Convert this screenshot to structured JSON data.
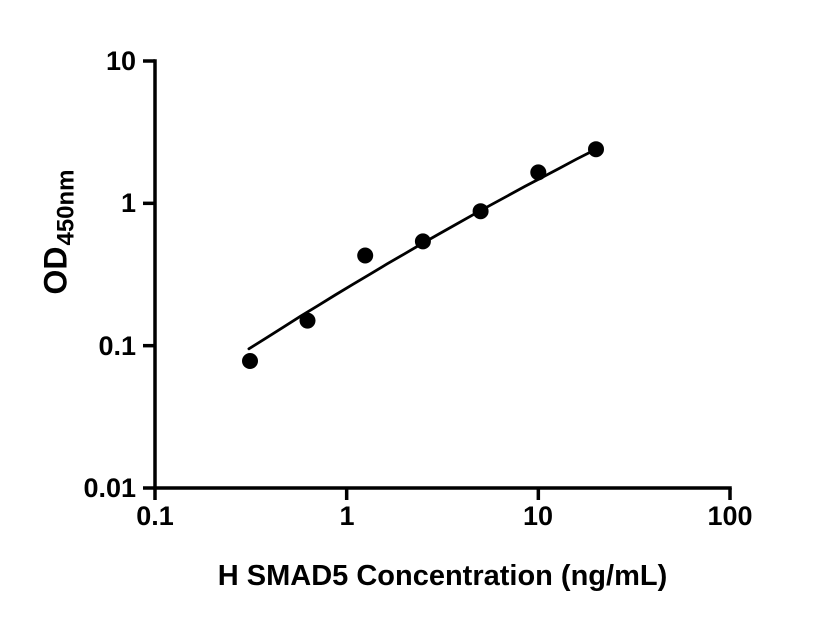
{
  "chart_data": {
    "type": "scatter",
    "title": "",
    "xlabel": "H SMAD5 Concentration (ng/mL)",
    "ylabel_main": "OD",
    "ylabel_sub": "450nm",
    "x_scale": "log",
    "y_scale": "log",
    "xlim": [
      0.1,
      100
    ],
    "ylim": [
      0.01,
      10
    ],
    "x_ticks": [
      0.1,
      1,
      10,
      100
    ],
    "x_tick_labels": [
      "0.1",
      "1",
      "10",
      "100"
    ],
    "y_ticks": [
      0.01,
      0.1,
      1,
      10
    ],
    "y_tick_labels": [
      "0.01",
      "0.1",
      "1",
      "10"
    ],
    "grid": false,
    "legend": false,
    "axis_color": "#000000",
    "marker_color": "#000000",
    "line_color": "#000000",
    "points": [
      [
        0.313,
        0.078
      ],
      [
        0.625,
        0.15
      ],
      [
        1.25,
        0.43
      ],
      [
        2.5,
        0.54
      ],
      [
        5,
        0.88
      ],
      [
        10,
        1.65
      ],
      [
        20,
        2.4
      ]
    ],
    "fit_curve": [
      [
        0.309,
        0.095
      ],
      [
        0.38,
        0.113
      ],
      [
        0.468,
        0.135
      ],
      [
        0.575,
        0.161
      ],
      [
        0.708,
        0.191
      ],
      [
        0.871,
        0.227
      ],
      [
        1.07,
        0.268
      ],
      [
        1.32,
        0.317
      ],
      [
        1.62,
        0.374
      ],
      [
        2.0,
        0.441
      ],
      [
        2.45,
        0.518
      ],
      [
        3.02,
        0.608
      ],
      [
        3.72,
        0.711
      ],
      [
        4.57,
        0.832
      ],
      [
        5.62,
        0.97
      ],
      [
        6.92,
        1.13
      ],
      [
        8.51,
        1.315
      ],
      [
        10.5,
        1.525
      ],
      [
        12.9,
        1.766
      ],
      [
        15.8,
        2.042
      ],
      [
        19.95,
        2.394
      ]
    ]
  }
}
